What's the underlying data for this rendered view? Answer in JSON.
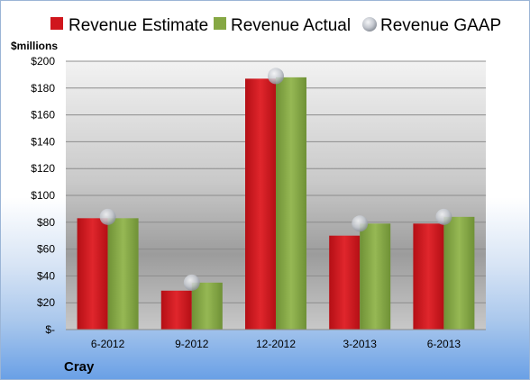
{
  "chart_data": {
    "type": "bar",
    "title": "",
    "ylabel": "$millions",
    "xlabel": "",
    "company": "Cray",
    "categories": [
      "6-2012",
      "9-2012",
      "12-2012",
      "3-2013",
      "6-2013"
    ],
    "ylim": [
      0,
      200
    ],
    "yticks": [
      0,
      20,
      40,
      60,
      80,
      100,
      120,
      140,
      160,
      180,
      200
    ],
    "ytick_labels": [
      "$-",
      "$20",
      "$40",
      "$60",
      "$80",
      "$100",
      "$120",
      "$140",
      "$160",
      "$180",
      "$200"
    ],
    "legend_position": "top",
    "grid": true,
    "series": [
      {
        "name": "Revenue Estimate",
        "kind": "bar",
        "color": "#d0161d",
        "values": [
          83,
          29,
          187,
          70,
          79
        ]
      },
      {
        "name": "Revenue Actual",
        "kind": "bar",
        "color": "#86a844",
        "values": [
          83,
          35,
          188,
          79,
          84
        ]
      },
      {
        "name": "Revenue GAAP",
        "kind": "marker",
        "color": "#b8bcc4",
        "values": [
          84,
          35,
          189,
          79,
          84
        ]
      }
    ]
  }
}
